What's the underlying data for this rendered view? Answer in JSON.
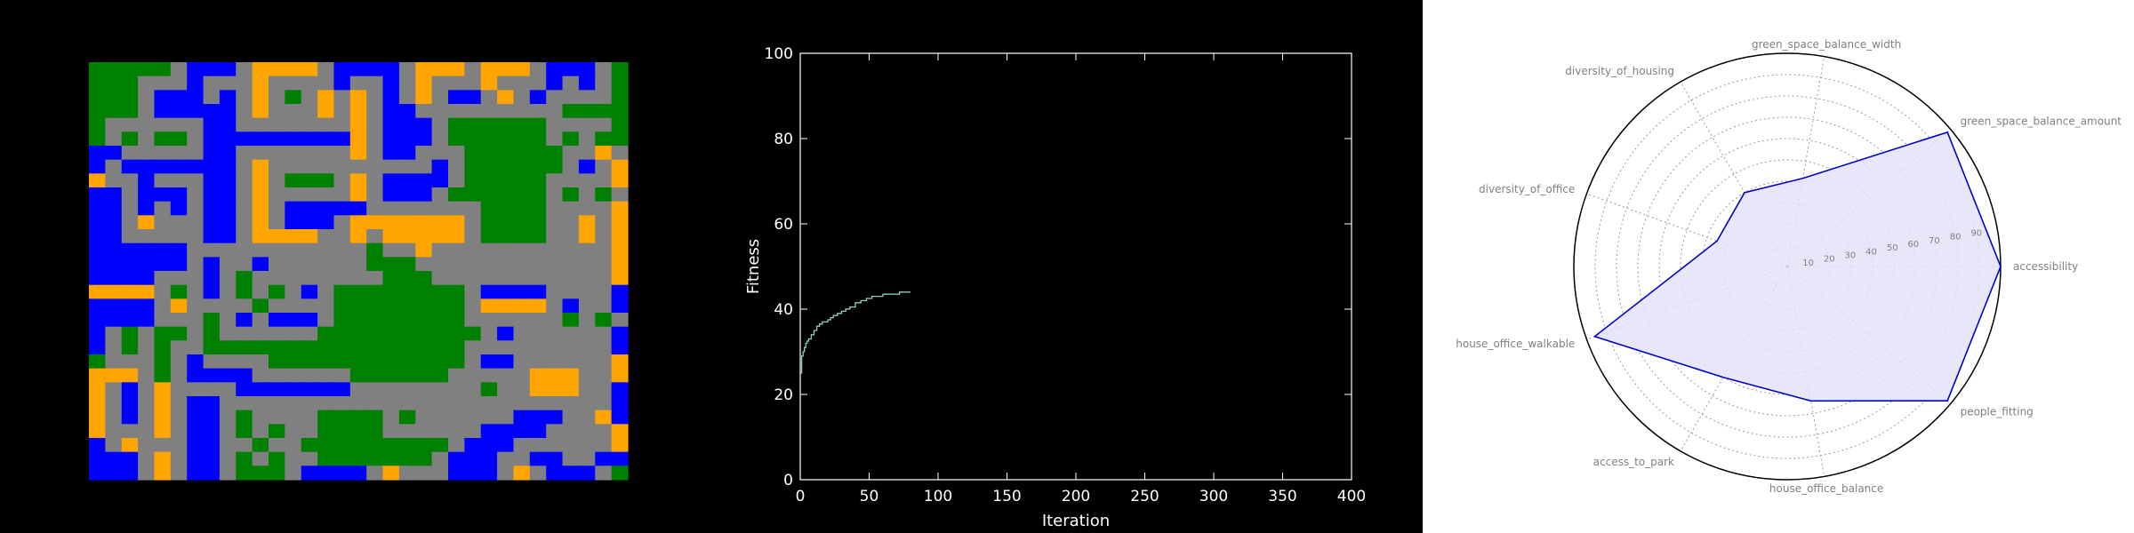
{
  "colors": {
    "background": "#000000",
    "panel_right_bg": "#ffffff",
    "cell_green": "#008000",
    "cell_blue": "#0000ff",
    "cell_orange": "#ffa500",
    "cell_gray": "#808080",
    "line_series": "#8fd1b6",
    "radar_line": "#0000cc",
    "radar_fill": "#e3e3f8"
  },
  "chart_data": [
    {
      "type": "heatmap",
      "title": "",
      "legend": [],
      "grid_rows": [
        "GGGGGSBBBSOOOOSBBBBSOOOSOOOSBBBSG",
        "GGGSSSBSSSOSSSSBSSBSOSSSOSSSBSBSG",
        "GGGSBBBSBSOSGSOSOSBSOSBBSOSBSSSSG",
        "GGGSBBBBBSOSSSOSOSBBSSSSSSSSSGGGG",
        "GSSSSSSBBSSSSSSSOSBBBSGGGGGGSSSSG",
        "GSGSGGSBBBBBBBBBOSBBBSGGGGGGSGSGG",
        "BBSSSSSBBSSSSSSSOSBBSSSGGGGGGSSOS",
        "BSBBBBBBBSOSSSSSSSSSSBSGGGGGGSBSO",
        "OSSBSSSBBSOSGGGSOSBBBBSGGGGGSSSSO",
        "BBSBBBSBBSOSSSSSOSBBBSGGGGGGSGSGS",
        "BBSBSBSBBSOSBBBBBSSSSSSSGGGGSSSSO",
        "BBSOSSSBBSOSBBBSOOOOOOOSGGGGSSOSO",
        "BBSSSSSBBSOOOOSSOSOOOOOSGGGGSSOSO",
        "BBBBBBSSSSSSSSSSSGSSOSSSSSSSSSSSO",
        "BBBBBBSBSSBSSSSSSGGGSSSSSSSSSSSSO",
        "BBBBSSSBSGSSSSSSSSGGGSSSSSSSSSSSO",
        "OOOOSGSBSGSGSBSGGGGGGGGSBBBBSSSSB",
        "BBBBSOSSSSGSSSSGGGGGGGGSOOOOSBSSB",
        "BBBBSSSGSBSBBBSGGGGGGGGSSSSSSGSGS",
        "BSGSGGSGSSSSSSGGGGGGGGGGSBSSSSSSB",
        "BSGSGSSGGGGGGGGGGGGGGGGSSSSSSSSSB",
        "GSSSGSBSSSSGGGGGGGGGGGGSBBSSSSSSO",
        "OOOSGSBBBBSSSSSSGGGGGGSSSSSOOOSSO",
        "OSBSOSSSSBBBBBBBSSSSSSSSGSSOOOSSB",
        "OSBSOSBBSSSSSSSSSSSSSSSSSSSSSSSSB",
        "OSBSOSBBSGSSSSGGGGSGSSSSSSBBBSSOB",
        "OSSSOSBBSGSGSSGGGGSSSSSSBBBBSSSSO",
        "BSOSSSBBSSGSSGGGGGGGGGSBBBSSSSSSO",
        "BBBSOSBBSGSGSSGGGGGGGSBBBSSBBSSBB",
        "BBBSOSBBSGGGSBBBBSOSSSBBBSOSBBBSG"
      ],
      "cell_codes": {
        "G": "green",
        "B": "blue",
        "O": "orange",
        "S": "gray"
      }
    },
    {
      "type": "line",
      "title": "",
      "xlabel": "Iteration",
      "ylabel": "Fitness",
      "xlim": [
        0,
        400
      ],
      "ylim": [
        0,
        100
      ],
      "xticks": [
        "0",
        "50",
        "100",
        "150",
        "200",
        "250",
        "300",
        "350",
        "400"
      ],
      "yticks": [
        "0",
        "20",
        "40",
        "60",
        "80",
        "100"
      ],
      "grid": false,
      "series": [
        {
          "x": [
            0,
            1,
            2,
            3,
            4,
            5,
            6,
            8,
            10,
            12,
            14,
            16,
            18,
            20,
            22,
            24,
            27,
            30,
            33,
            36,
            40,
            44,
            48,
            52,
            56,
            60,
            64,
            68,
            72,
            76,
            80
          ],
          "y": [
            25,
            29,
            30,
            31,
            32,
            32.5,
            33,
            34,
            35,
            36,
            36.5,
            37,
            37,
            37.5,
            38,
            38.5,
            39,
            39.5,
            40,
            40.5,
            41.5,
            42,
            42.5,
            43,
            43,
            43.5,
            43.5,
            43.5,
            44,
            44,
            44
          ]
        }
      ]
    },
    {
      "type": "radar",
      "title": "",
      "r_range": [
        0,
        100
      ],
      "r_ticks": [
        "10",
        "20",
        "30",
        "40",
        "50",
        "60",
        "70",
        "80",
        "90"
      ],
      "axes": [
        "accessibility",
        "green_space_balance_amount",
        "green_space_balance_width",
        "diversity_of_housing",
        "diversity_of_office",
        "house_office_walkable",
        "access_to_park",
        "house_office_balance",
        "people_fitting"
      ],
      "values": [
        100,
        98,
        42,
        40,
        35,
        96,
        60,
        64,
        98
      ]
    }
  ]
}
